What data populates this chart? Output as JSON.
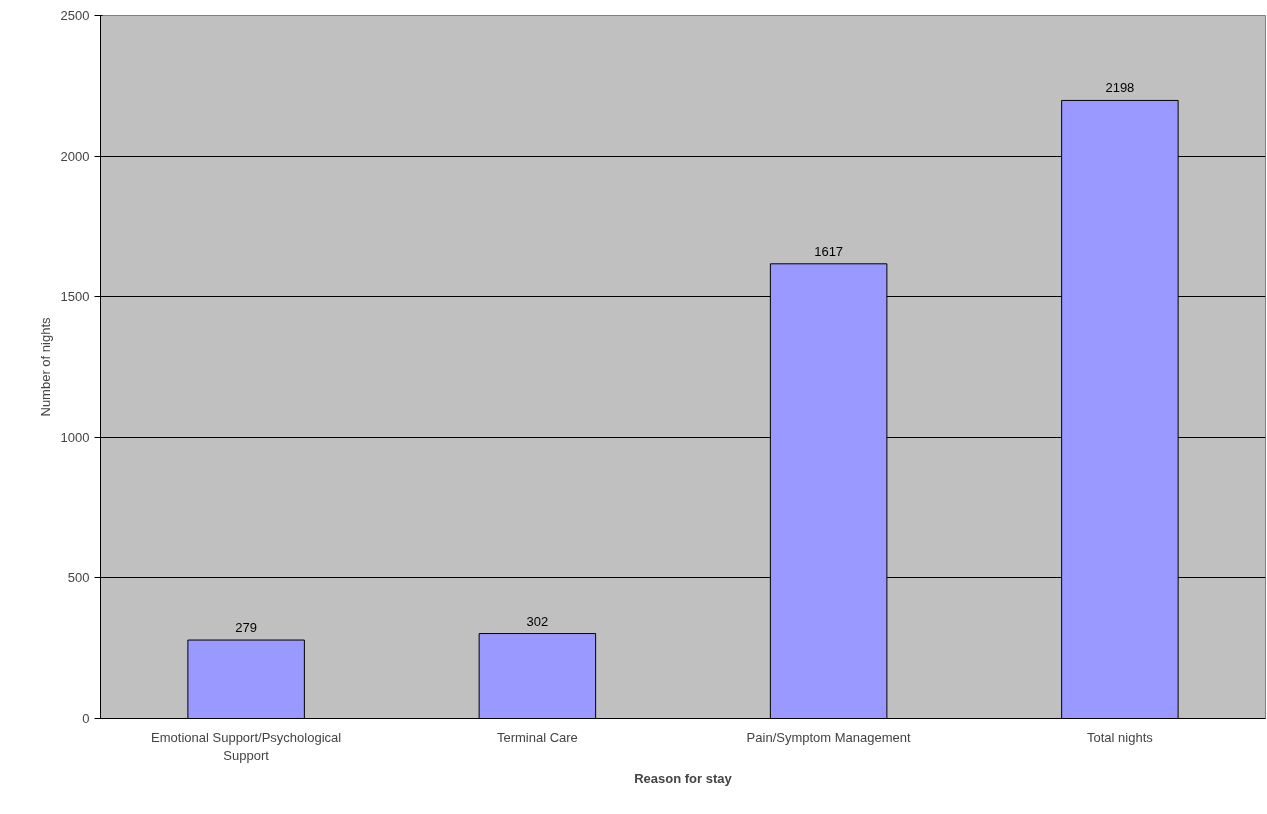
{
  "chart_data": {
    "type": "bar",
    "xlabel": "Reason for stay",
    "ylabel": "Number of nights",
    "categories": [
      "Emotional Support/Psychological Support",
      "Terminal Care",
      "Pain/Symptom Management",
      "Total nights"
    ],
    "values": [
      279,
      302,
      1617,
      2198
    ],
    "color": "#9999ff",
    "ylim": [
      0,
      2500
    ],
    "yticks": [
      0,
      500,
      1000,
      1500,
      2000,
      2500
    ],
    "grid": "y",
    "data_labels": true
  }
}
